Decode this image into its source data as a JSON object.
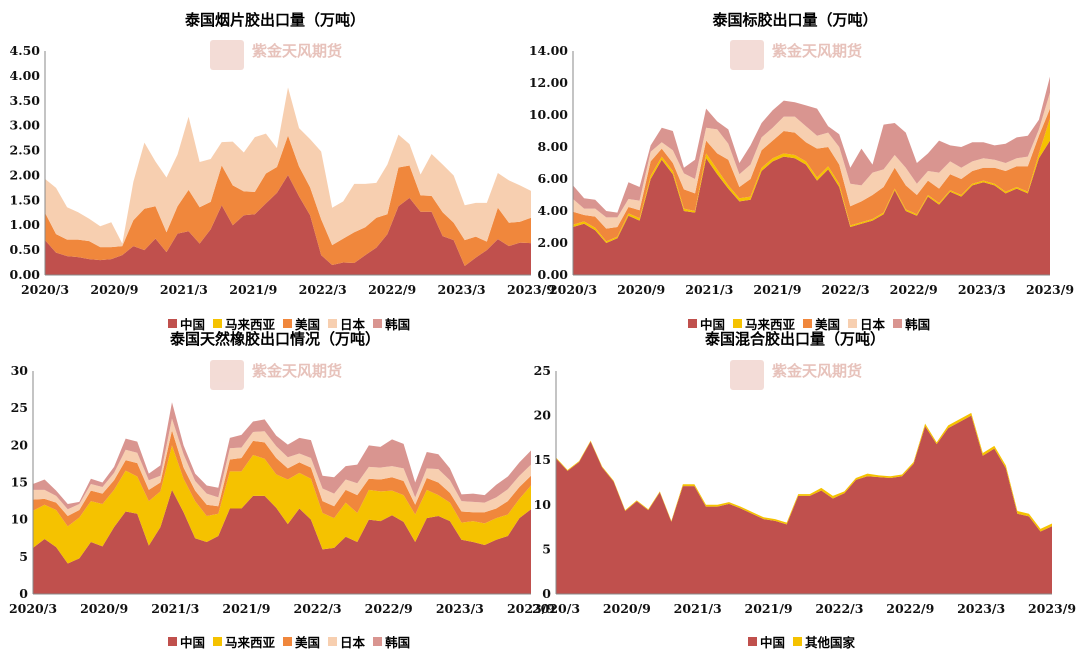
{
  "palette": {
    "中国": "#c0504d",
    "马来西亚": "#f5c200",
    "美国": "#f0873c",
    "日本": "#f7cfb0",
    "韩国": "#d99590",
    "其他国家": "#f5c200"
  },
  "watermark": "紫金天风期货",
  "chart_data": [
    {
      "type": "area",
      "stacked": true,
      "title": "泰国烟片胶出口量（万吨）",
      "ylim": [
        0,
        4.5
      ],
      "yticks": [
        "0.00",
        "0.50",
        "1.00",
        "1.50",
        "2.00",
        "2.50",
        "3.00",
        "3.50",
        "4.00",
        "4.50"
      ],
      "xticks": [
        "2020/3",
        "2020/9",
        "2021/3",
        "2021/9",
        "2022/3",
        "2022/9",
        "2023/3",
        "2023/9"
      ],
      "legend_position": "bottom",
      "series": [
        {
          "name": "中国",
          "values": [
            0.7,
            0.45,
            0.38,
            0.36,
            0.32,
            0.3,
            0.32,
            0.4,
            0.58,
            0.5,
            0.73,
            0.46,
            0.83,
            0.88,
            0.63,
            0.92,
            1.4,
            1.0,
            1.2,
            1.22,
            1.44,
            1.65,
            2.01,
            1.58,
            1.2,
            0.4,
            0.2,
            0.25,
            0.24,
            0.4,
            0.55,
            0.82,
            1.38,
            1.55,
            1.27,
            1.27,
            0.78,
            0.7,
            0.18,
            0.35,
            0.5,
            0.72,
            0.58,
            0.65,
            0.64
          ]
        },
        {
          "name": "马来西亚",
          "values": [
            0,
            0,
            0,
            0,
            0,
            0,
            0,
            0,
            0,
            0,
            0,
            0,
            0,
            0,
            0,
            0,
            0,
            0,
            0,
            0,
            0,
            0,
            0,
            0,
            0,
            0,
            0,
            0,
            0,
            0,
            0,
            0,
            0,
            0,
            0,
            0,
            0,
            0,
            0,
            0,
            0,
            0,
            0,
            0,
            0
          ]
        },
        {
          "name": "美国",
          "values": [
            0.55,
            0.37,
            0.33,
            0.35,
            0.36,
            0.26,
            0.24,
            0.18,
            0.52,
            0.83,
            0.65,
            0.4,
            0.55,
            0.83,
            0.73,
            0.55,
            0.8,
            0.8,
            0.48,
            0.45,
            0.6,
            0.52,
            0.79,
            0.6,
            0.56,
            0.72,
            0.4,
            0.48,
            0.62,
            0.56,
            0.6,
            0.4,
            0.78,
            0.65,
            0.33,
            0.32,
            0.48,
            0.35,
            0.52,
            0.42,
            0.17,
            0.63,
            0.47,
            0.42,
            0.51
          ]
        },
        {
          "name": "日本",
          "values": [
            0.68,
            0.93,
            0.65,
            0.55,
            0.45,
            0.42,
            0.5,
            0.05,
            0.77,
            1.33,
            0.9,
            1.1,
            1.04,
            1.47,
            0.91,
            0.86,
            0.47,
            0.88,
            0.78,
            1.1,
            0.8,
            0.38,
            0.97,
            0.77,
            0.97,
            1.36,
            0.75,
            0.75,
            0.97,
            0.87,
            0.7,
            1.0,
            0.66,
            0.43,
            0.42,
            0.84,
            0.96,
            0.95,
            0.7,
            0.68,
            0.78,
            0.7,
            0.85,
            0.73,
            0.54
          ]
        },
        {
          "name": "韩国",
          "values": [
            0,
            0,
            0,
            0,
            0,
            0,
            0,
            0,
            0,
            0,
            0,
            0,
            0,
            0,
            0,
            0,
            0,
            0,
            0,
            0,
            0,
            0,
            0,
            0,
            0,
            0,
            0,
            0,
            0,
            0,
            0,
            0,
            0,
            0,
            0,
            0,
            0,
            0,
            0,
            0,
            0,
            0,
            0,
            0,
            0
          ]
        }
      ]
    },
    {
      "type": "area",
      "stacked": true,
      "title": "泰国标胶出口量（万吨）",
      "ylim": [
        0,
        14
      ],
      "yticks": [
        "0.00",
        "2.00",
        "4.00",
        "6.00",
        "8.00",
        "10.00",
        "12.00",
        "14.00"
      ],
      "xticks": [
        "2020/3",
        "2020/9",
        "2021/3",
        "2021/9",
        "2022/3",
        "2022/9",
        "2023/3",
        "2023/9"
      ],
      "legend_position": "bottom",
      "series": [
        {
          "name": "中国",
          "values": [
            3.0,
            3.2,
            2.8,
            2.0,
            2.3,
            3.7,
            3.4,
            6.0,
            7.2,
            6.3,
            4.0,
            3.9,
            7.3,
            6.3,
            5.4,
            4.6,
            4.7,
            6.5,
            7.1,
            7.4,
            7.3,
            6.9,
            5.9,
            6.6,
            5.5,
            3.0,
            3.2,
            3.4,
            3.8,
            5.3,
            4.0,
            3.7,
            4.9,
            4.4,
            5.2,
            4.9,
            5.6,
            5.8,
            5.6,
            5.1,
            5.4,
            5.1,
            7.3,
            8.4
          ]
        },
        {
          "name": "马来西亚",
          "values": [
            0.15,
            0.15,
            0.15,
            0.1,
            0.1,
            0.15,
            0.15,
            0.2,
            0.2,
            0.2,
            0.15,
            0.1,
            0.3,
            0.3,
            0.2,
            0.2,
            0.2,
            0.2,
            0.2,
            0.2,
            0.2,
            0.2,
            0.2,
            0.2,
            0.2,
            0.1,
            0.1,
            0.1,
            0.1,
            0.1,
            0.1,
            0.1,
            0.1,
            0.1,
            0.1,
            0.1,
            0.1,
            0.1,
            0.1,
            0.1,
            0.1,
            0.1,
            0.3,
            1.4
          ]
        },
        {
          "name": "美国",
          "values": [
            0.8,
            0.4,
            0.7,
            0.8,
            0.6,
            0.4,
            0.5,
            0.9,
            0.5,
            0.5,
            1.2,
            1.1,
            0.8,
            1.0,
            1.6,
            0.7,
            1.1,
            1.1,
            1.1,
            1.4,
            1.4,
            1.2,
            1.8,
            1.2,
            1.2,
            1.2,
            1.3,
            1.5,
            1.6,
            1.3,
            1.5,
            1.2,
            0.9,
            0.9,
            1.0,
            1.0,
            0.8,
            0.8,
            1.0,
            1.3,
            1.3,
            1.6,
            1.1,
            0.6
          ]
        },
        {
          "name": "日本",
          "values": [
            0.8,
            0.4,
            0.5,
            0.7,
            0.6,
            0.5,
            0.6,
            0.6,
            0.4,
            0.8,
            1.0,
            0.9,
            0.8,
            1.5,
            1.0,
            0.8,
            0.9,
            0.8,
            0.8,
            0.9,
            1.0,
            1.0,
            0.8,
            0.9,
            1.1,
            1.4,
            1.0,
            1.4,
            1.1,
            0.8,
            1.1,
            0.7,
            0.6,
            1.0,
            0.8,
            0.7,
            0.6,
            0.6,
            0.5,
            0.5,
            0.5,
            0.6,
            0.4,
            1.0
          ]
        },
        {
          "name": "韩国",
          "values": [
            0.85,
            0.65,
            0.55,
            0.4,
            0.3,
            1.05,
            0.85,
            0.4,
            0.9,
            1.2,
            0.35,
            1.2,
            1.2,
            0.5,
            0.9,
            0.7,
            1.2,
            0.9,
            1.1,
            1.0,
            0.9,
            1.3,
            1.7,
            0.4,
            0.8,
            1.0,
            2.3,
            0.5,
            2.8,
            2.0,
            2.2,
            1.3,
            1.1,
            2.0,
            1.0,
            1.3,
            1.2,
            1.0,
            0.9,
            1.2,
            1.3,
            1.3,
            0.6,
            1.0
          ]
        }
      ]
    },
    {
      "type": "area",
      "stacked": true,
      "title": "泰国天然橡胶出口情况（万吨）",
      "ylim": [
        0,
        30
      ],
      "yticks": [
        "0",
        "5",
        "10",
        "15",
        "20",
        "25",
        "30"
      ],
      "xticks": [
        "2020/3",
        "2020/9",
        "2021/3",
        "2021/9",
        "2022/3",
        "2022/9",
        "2023/3",
        "2023/9"
      ],
      "legend_position": "bottom",
      "series": [
        {
          "name": "中国",
          "values": [
            6.2,
            7.4,
            6.3,
            4.1,
            4.8,
            7.0,
            6.4,
            9.0,
            11.1,
            10.8,
            6.5,
            9.0,
            14.0,
            11.0,
            7.5,
            7.0,
            7.8,
            11.5,
            11.5,
            13.2,
            13.2,
            11.6,
            9.4,
            11.5,
            10.0,
            6.0,
            6.2,
            7.7,
            7.0,
            10.0,
            9.8,
            10.6,
            9.7,
            7.0,
            10.2,
            10.5,
            9.8,
            7.3,
            7.0,
            6.6,
            7.3,
            7.8,
            10.2,
            11.4
          ]
        },
        {
          "name": "马来西亚",
          "values": [
            5.0,
            4.6,
            5.0,
            5.0,
            5.5,
            5.5,
            5.7,
            5.0,
            5.5,
            5.0,
            6.0,
            4.8,
            6.0,
            4.5,
            5.0,
            3.5,
            3.0,
            5.0,
            5.0,
            5.5,
            5.0,
            4.5,
            6.0,
            4.8,
            5.5,
            4.9,
            4.0,
            4.6,
            3.9,
            4.0,
            4.0,
            3.3,
            3.6,
            3.7,
            3.8,
            2.8,
            2.5,
            2.3,
            2.8,
            2.9,
            2.9,
            2.9,
            2.6,
            3.2
          ]
        },
        {
          "name": "美国",
          "values": [
            1.5,
            0.8,
            1.0,
            1.4,
            1.0,
            1.4,
            1.4,
            1.3,
            1.4,
            1.8,
            1.5,
            1.2,
            2.0,
            1.5,
            1.4,
            1.5,
            1.0,
            1.6,
            1.8,
            1.9,
            2.2,
            2.2,
            1.5,
            1.4,
            1.5,
            1.6,
            1.6,
            1.7,
            2.4,
            1.5,
            1.6,
            1.8,
            1.9,
            1.3,
            1.6,
            1.7,
            1.3,
            1.5,
            1.2,
            1.5,
            1.3,
            1.8,
            1.6,
            1.3
          ]
        },
        {
          "name": "日本",
          "values": [
            1.3,
            1.2,
            0.9,
            0.9,
            0.8,
            0.9,
            0.9,
            1.0,
            1.4,
            1.4,
            1.3,
            0.9,
            1.6,
            1.8,
            1.3,
            1.5,
            1.2,
            1.5,
            1.4,
            1.2,
            1.5,
            1.6,
            1.5,
            1.2,
            1.3,
            1.7,
            1.7,
            1.4,
            1.6,
            1.6,
            1.6,
            1.5,
            1.7,
            1.0,
            1.3,
            1.8,
            1.7,
            1.4,
            1.4,
            1.3,
            1.5,
            1.6,
            1.5,
            1.5
          ]
        },
        {
          "name": "韩国",
          "values": [
            0.8,
            1.4,
            0.7,
            0.7,
            0.3,
            0.7,
            0.6,
            0.8,
            1.5,
            1.5,
            0.9,
            1.4,
            2.2,
            1.2,
            1.0,
            1.1,
            1.3,
            1.4,
            1.7,
            1.4,
            1.6,
            1.4,
            1.7,
            2.1,
            2.4,
            1.7,
            2.2,
            1.8,
            2.5,
            2.9,
            2.8,
            3.6,
            3.3,
            2.0,
            2.2,
            2.0,
            1.6,
            0.9,
            1.1,
            1.0,
            1.7,
            1.7,
            1.8,
            1.9
          ]
        }
      ]
    },
    {
      "type": "area",
      "stacked": true,
      "title": "泰国混合胶出口量（万吨）",
      "ylim": [
        0,
        25
      ],
      "yticks": [
        "0",
        "5",
        "10",
        "15",
        "20",
        "25"
      ],
      "xticks": [
        "2020/3",
        "2020/9",
        "2021/3",
        "2021/9",
        "2022/3",
        "2022/9",
        "2023/3",
        "2023/9"
      ],
      "legend_position": "bottom",
      "series": [
        {
          "name": "中国",
          "values": [
            15.2,
            13.8,
            14.8,
            17.1,
            14.2,
            12.6,
            9.3,
            10.4,
            9.4,
            11.4,
            8.1,
            12.1,
            12.1,
            9.8,
            9.8,
            10.1,
            9.6,
            9.0,
            8.4,
            8.2,
            7.8,
            11.0,
            11.0,
            11.6,
            10.7,
            11.3,
            12.8,
            13.2,
            13.1,
            13.0,
            13.2,
            14.6,
            18.8,
            16.8,
            18.6,
            19.3,
            20.0,
            15.5,
            16.3,
            14.1,
            9.0,
            8.7,
            7.0,
            7.6
          ]
        },
        {
          "name": "其他国家",
          "values": [
            0.1,
            0.1,
            0.1,
            0.1,
            0.1,
            0.1,
            0.1,
            0.1,
            0.1,
            0.1,
            0.1,
            0.2,
            0.2,
            0.2,
            0.2,
            0.2,
            0.2,
            0.2,
            0.2,
            0.2,
            0.2,
            0.2,
            0.2,
            0.3,
            0.3,
            0.2,
            0.2,
            0.3,
            0.2,
            0.2,
            0.2,
            0.2,
            0.3,
            0.2,
            0.3,
            0.3,
            0.3,
            0.3,
            0.3,
            0.3,
            0.3,
            0.3,
            0.3,
            0.3
          ]
        }
      ]
    }
  ]
}
